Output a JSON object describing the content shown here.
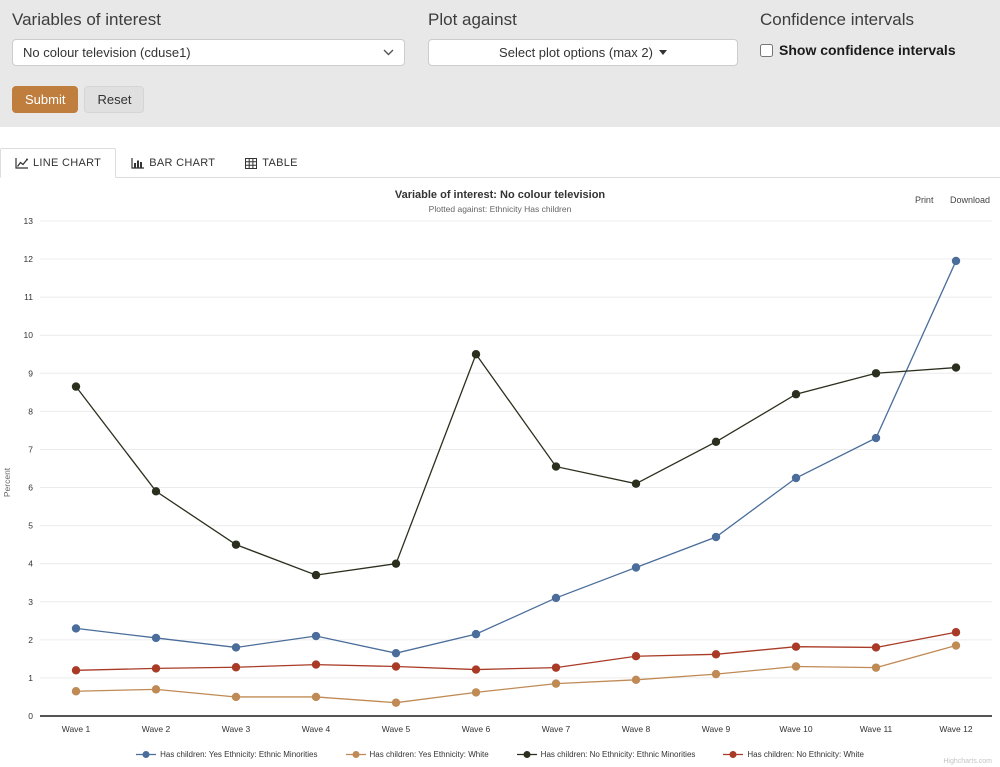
{
  "controls": {
    "variables": {
      "label": "Variables of interest",
      "value": "No colour television (cduse1)"
    },
    "plot_against": {
      "label": "Plot against",
      "value": "Select plot options (max 2)"
    },
    "confidence": {
      "label": "Confidence intervals",
      "checkbox_label": "Show confidence intervals",
      "checked": false
    },
    "submit_label": "Submit",
    "reset_label": "Reset",
    "submit_color": "#bf7e3d"
  },
  "tabs": [
    {
      "label": "LINE CHART",
      "active": true
    },
    {
      "label": "BAR CHART",
      "active": false
    },
    {
      "label": "TABLE",
      "active": false
    }
  ],
  "chart_actions": {
    "print_label": "Print",
    "download_label": "Download"
  },
  "watermark": "Highcharts.com",
  "chart_data": {
    "type": "line",
    "title": "Variable of interest: No colour television",
    "subtitle": "Plotted against: Ethnicity Has children",
    "xlabel": "",
    "ylabel": "Percent",
    "ylim": [
      0,
      13
    ],
    "y_ticks": [
      0,
      1,
      2,
      3,
      4,
      5,
      6,
      7,
      8,
      9,
      10,
      11,
      12,
      13
    ],
    "grid": true,
    "legend_position": "bottom",
    "categories": [
      "Wave 1",
      "Wave 2",
      "Wave 3",
      "Wave 4",
      "Wave 5",
      "Wave 6",
      "Wave 7",
      "Wave 8",
      "Wave 9",
      "Wave 10",
      "Wave 11",
      "Wave 12"
    ],
    "series": [
      {
        "name": "Has children: Yes Ethnicity: Ethnic Minorities",
        "color": "#4a6d9b",
        "values": [
          2.3,
          2.05,
          1.8,
          2.1,
          1.65,
          2.15,
          3.1,
          3.9,
          4.7,
          6.25,
          7.3,
          11.95
        ]
      },
      {
        "name": "Has children: Yes Ethnicity: White",
        "color": "#c08a55",
        "values": [
          0.65,
          0.7,
          0.5,
          0.5,
          0.35,
          0.62,
          0.85,
          0.95,
          1.1,
          1.3,
          1.27,
          1.85
        ]
      },
      {
        "name": "Has children: No Ethnicity: Ethnic Minorities",
        "color": "#2a301d",
        "values": [
          8.65,
          5.9,
          4.5,
          3.7,
          4.0,
          9.5,
          6.55,
          6.1,
          7.2,
          8.45,
          9.0,
          9.15
        ]
      },
      {
        "name": "Has children: No Ethnicity: White",
        "color": "#a93b26",
        "values": [
          1.2,
          1.25,
          1.28,
          1.35,
          1.3,
          1.22,
          1.27,
          1.57,
          1.62,
          1.82,
          1.8,
          2.2
        ]
      }
    ]
  }
}
